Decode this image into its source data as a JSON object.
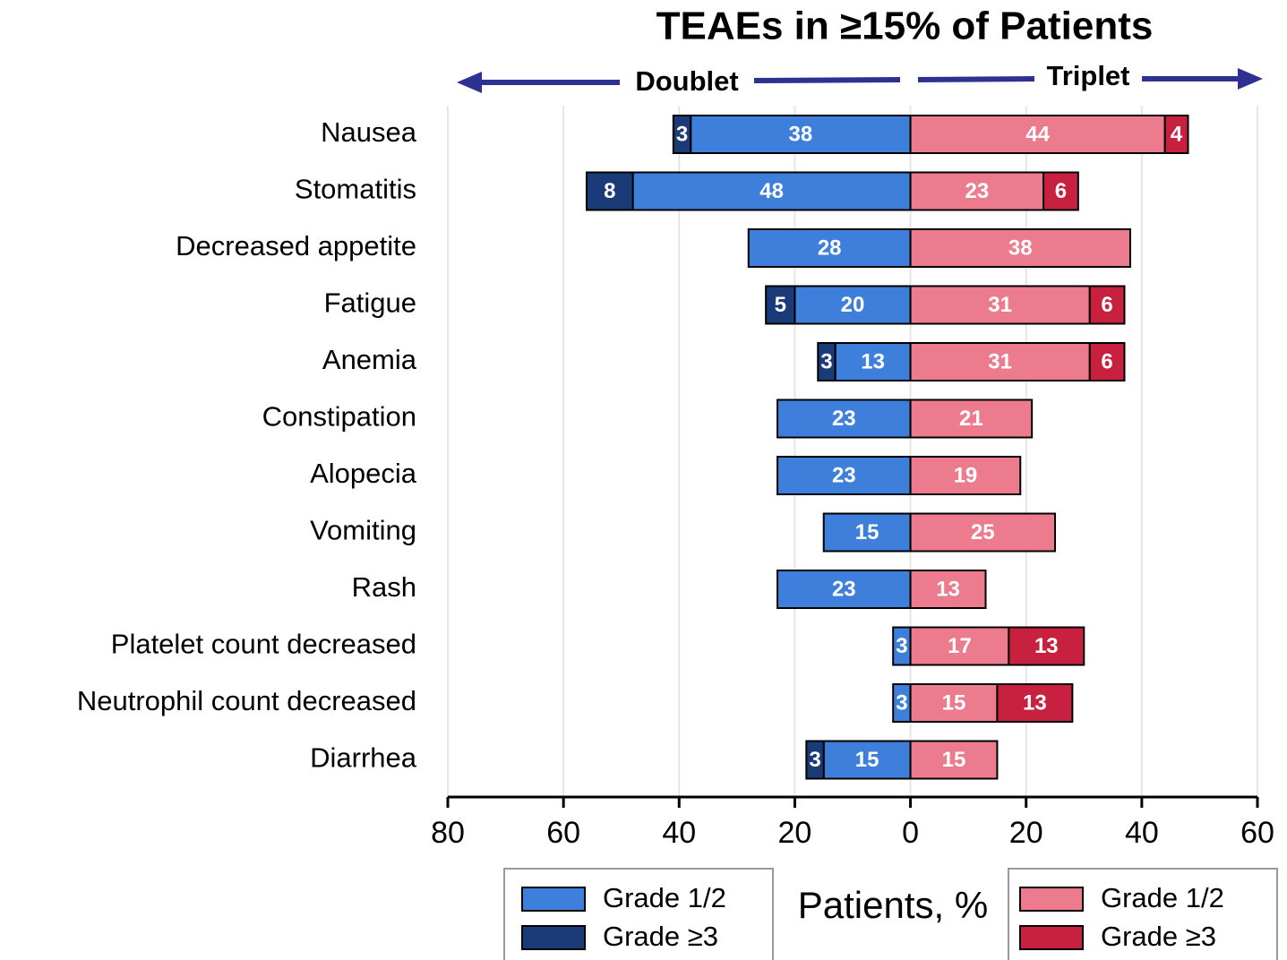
{
  "chart_data": {
    "type": "diverging-bar",
    "title": "TEAEs in ≥15% of Patients",
    "xlabel": "Patients, %",
    "categories": [
      "Nausea",
      "Stomatitis",
      "Decreased appetite",
      "Fatigue",
      "Anemia",
      "Constipation",
      "Alopecia",
      "Vomiting",
      "Rash",
      "Platelet count decreased",
      "Neutrophil count decreased",
      "Diarrhea"
    ],
    "groups": [
      {
        "name": "Doublet",
        "series": [
          {
            "name": "Grade 1/2",
            "color": "#3f7fdc",
            "values": [
              38,
              48,
              28,
              20,
              13,
              23,
              23,
              15,
              23,
              3,
              3,
              15
            ]
          },
          {
            "name": "Grade ≥3",
            "color": "#1b3a78",
            "values": [
              3,
              8,
              null,
              5,
              3,
              null,
              null,
              null,
              null,
              null,
              null,
              3
            ]
          }
        ]
      },
      {
        "name": "Triplet",
        "series": [
          {
            "name": "Grade 1/2",
            "color": "#ec7b8e",
            "values": [
              44,
              23,
              38,
              31,
              31,
              21,
              19,
              25,
              13,
              17,
              15,
              15
            ]
          },
          {
            "name": "Grade ≥3",
            "color": "#c8203f",
            "values": [
              4,
              6,
              null,
              6,
              6,
              null,
              null,
              null,
              null,
              13,
              13,
              null
            ]
          }
        ]
      }
    ],
    "xlim": [
      -80,
      60
    ],
    "xticks": [
      {
        "value": -80,
        "label": "80"
      },
      {
        "value": -60,
        "label": "60"
      },
      {
        "value": -40,
        "label": "40"
      },
      {
        "value": -20,
        "label": "20"
      },
      0,
      20,
      40,
      60
    ],
    "grid": true
  }
}
